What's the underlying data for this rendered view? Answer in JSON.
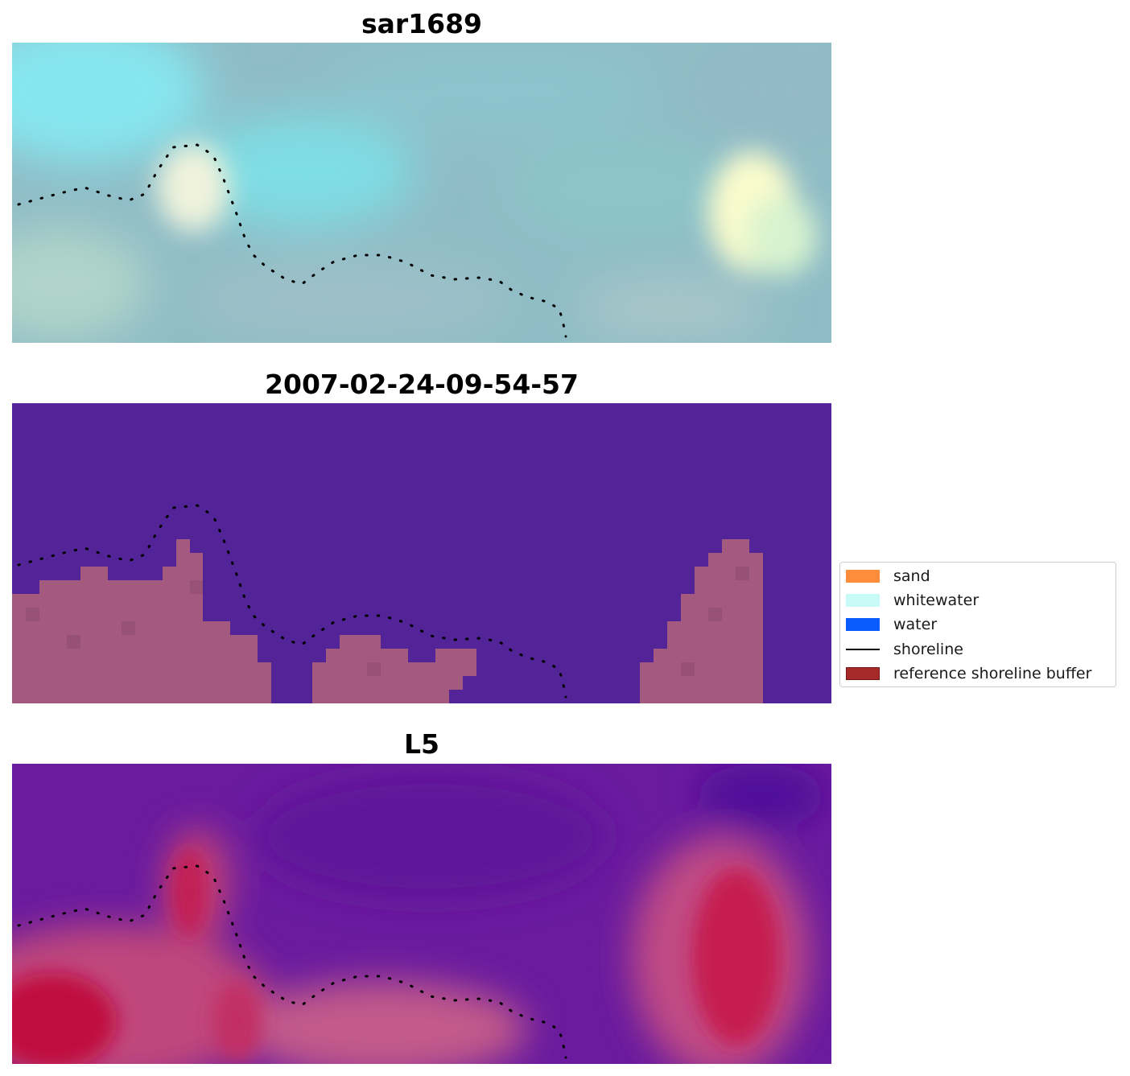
{
  "panels": [
    {
      "id": "sar",
      "title": "sar1689"
    },
    {
      "id": "classification",
      "title": "2007-02-24-09-54-57"
    },
    {
      "id": "band",
      "title": "L5"
    }
  ],
  "legend": {
    "placement": "center-right",
    "items": [
      {
        "label": "sand",
        "type": "patch",
        "color": "#ff8c3a"
      },
      {
        "label": "whitewater",
        "type": "patch",
        "color": "#c8fbf7"
      },
      {
        "label": "water",
        "type": "patch",
        "color": "#0a5cff"
      },
      {
        "label": "shoreline",
        "type": "line",
        "color": "#000000"
      },
      {
        "label": "reference shoreline buffer",
        "type": "patch",
        "color": "#a52a2a",
        "edge": "#7a1515"
      }
    ]
  },
  "colors": {
    "water_class": "#532398",
    "buffer_overlay": "#a4597f",
    "sar_base": "#8ebfc8",
    "band_low": "#6a1a9a",
    "band_high": "#c0103f"
  }
}
